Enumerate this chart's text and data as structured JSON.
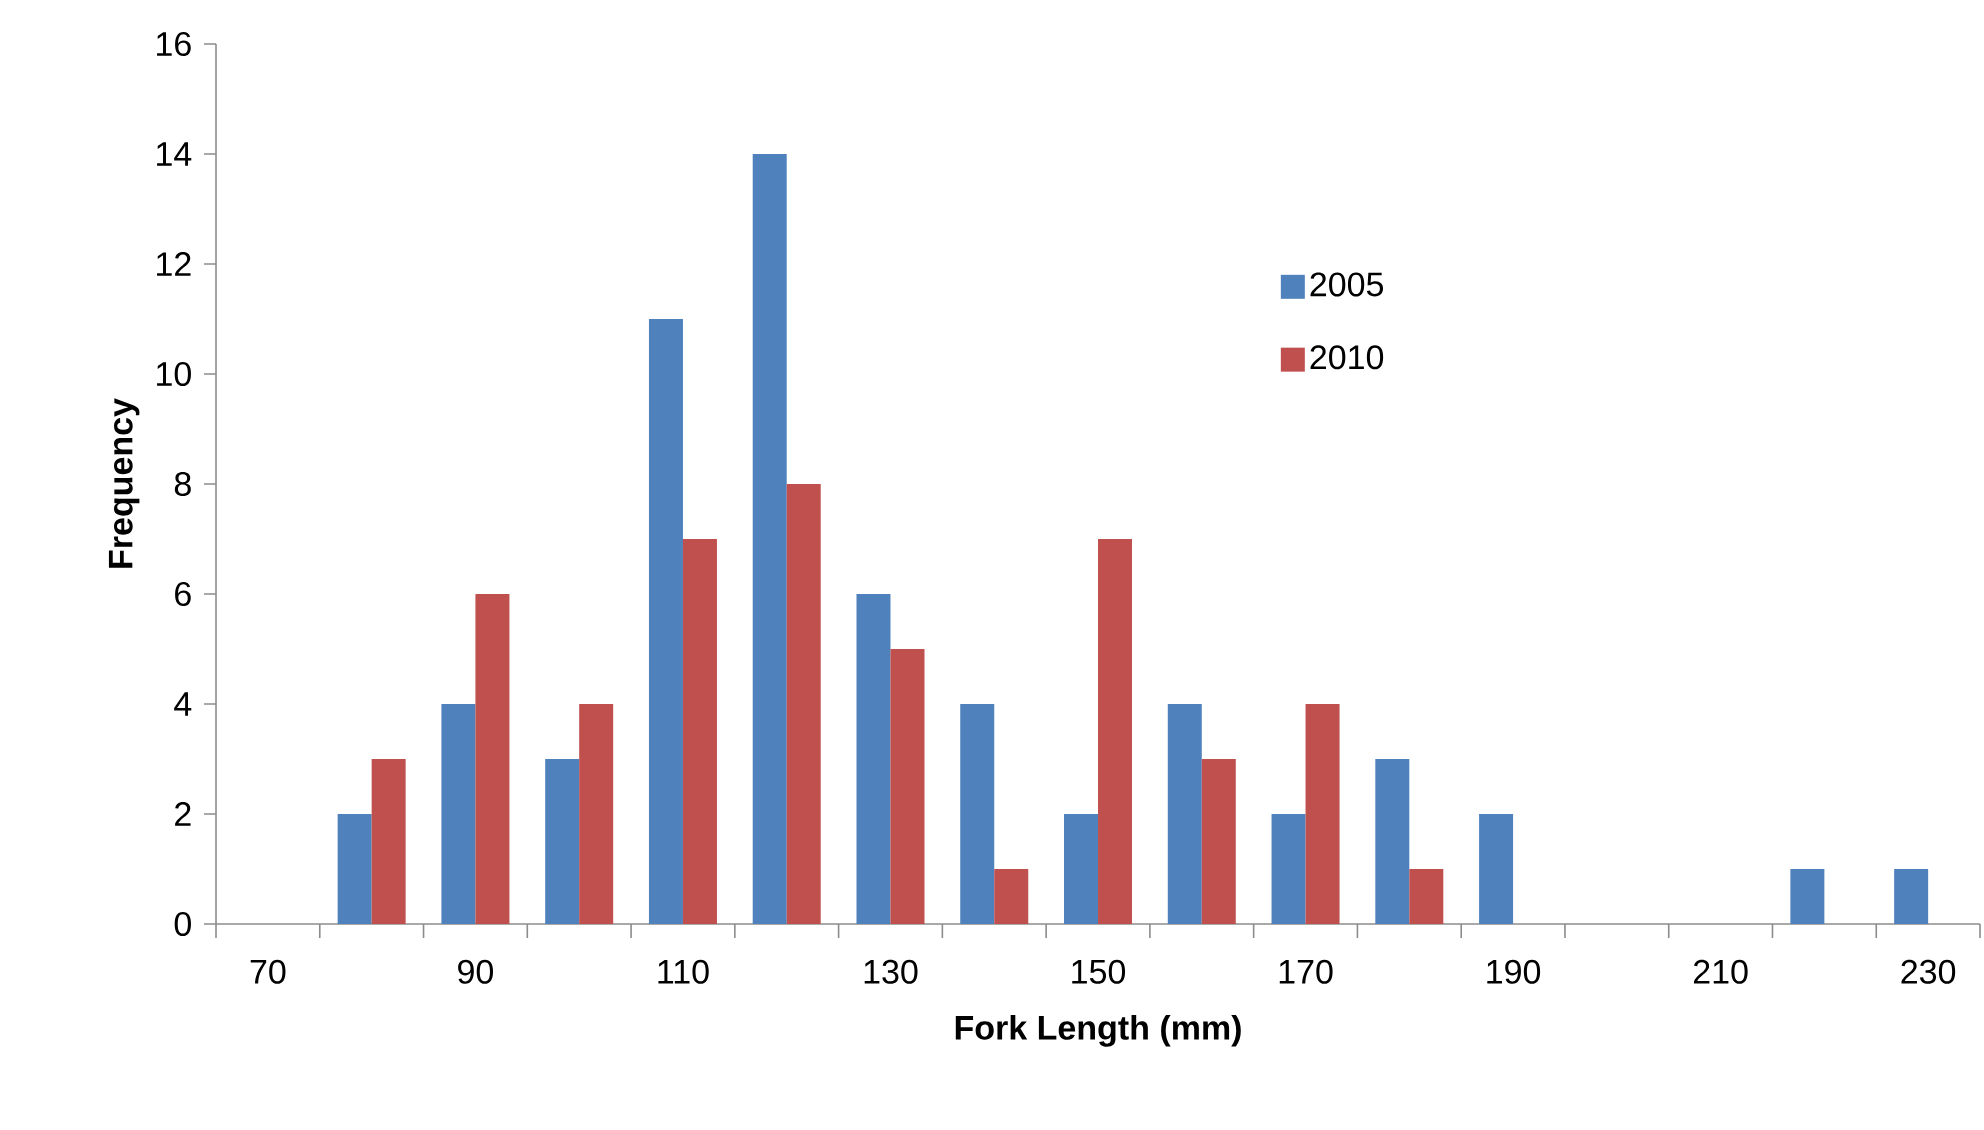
{
  "chart_data": {
    "type": "bar",
    "xlabel": "Fork Length (mm)",
    "ylabel": "Frequency",
    "categories": [
      "70",
      null,
      "90",
      null,
      "110",
      null,
      "130",
      null,
      "150",
      null,
      "170",
      null,
      "190",
      null,
      "210",
      null,
      "230"
    ],
    "series": [
      {
        "name": "2005",
        "color": "#4f81bd",
        "values": [
          0,
          2,
          4,
          3,
          11,
          14,
          6,
          4,
          2,
          4,
          2,
          3,
          2,
          0,
          0,
          1,
          1
        ]
      },
      {
        "name": "2010",
        "color": "#c0504d",
        "values": [
          0,
          3,
          6,
          4,
          7,
          8,
          5,
          1,
          7,
          3,
          4,
          1,
          0,
          0,
          0,
          0,
          0
        ]
      }
    ],
    "ylim": [
      0,
      16
    ],
    "yticks": [
      0,
      2,
      4,
      6,
      8,
      10,
      12,
      14,
      16
    ],
    "legend": "top"
  }
}
